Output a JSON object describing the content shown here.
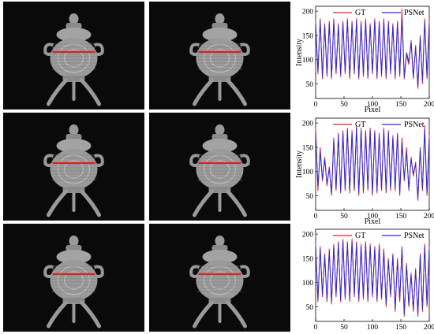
{
  "object_panels": [
    {
      "row": 1,
      "col": 1
    },
    {
      "row": 1,
      "col": 2
    },
    {
      "row": 2,
      "col": 1
    },
    {
      "row": 2,
      "col": 2
    },
    {
      "row": 3,
      "col": 1
    },
    {
      "row": 3,
      "col": 2
    }
  ],
  "colors": {
    "gt": "#e8202a",
    "psnet": "#2a2ae0",
    "panel_bg": "#0a0a0a",
    "object": "#9a9a9a",
    "scan_line": "#e02020"
  },
  "legend": {
    "gt": "GT",
    "psnet": "PSNet"
  },
  "chart_data": [
    {
      "type": "line",
      "xlabel": "Pixel",
      "ylabel": "Intensity",
      "xlim": [
        0,
        200
      ],
      "ylim": [
        20,
        210
      ],
      "xticks": [
        0,
        50,
        100,
        150,
        200
      ],
      "yticks": [
        50,
        100,
        150,
        200
      ],
      "legend_position": "top",
      "series": [
        {
          "name": "GT",
          "x": [
            0,
            4,
            8,
            12,
            16,
            20,
            24,
            28,
            32,
            36,
            40,
            44,
            48,
            52,
            56,
            60,
            64,
            68,
            72,
            76,
            80,
            84,
            88,
            92,
            96,
            100,
            104,
            108,
            112,
            116,
            120,
            124,
            128,
            132,
            136,
            140,
            144,
            148,
            152,
            156,
            160,
            164,
            168,
            172,
            176,
            180,
            184,
            188,
            192,
            196,
            200
          ],
          "y": [
            180,
            70,
            185,
            60,
            175,
            65,
            180,
            60,
            185,
            70,
            175,
            65,
            180,
            70,
            185,
            60,
            180,
            70,
            185,
            60,
            180,
            65,
            185,
            60,
            175,
            70,
            185,
            60,
            180,
            65,
            185,
            60,
            180,
            70,
            175,
            60,
            180,
            65,
            205,
            60,
            110,
            90,
            140,
            60,
            130,
            40,
            150,
            50,
            185,
            60,
            180
          ]
        },
        {
          "name": "PSNet",
          "x": [
            0,
            4,
            8,
            12,
            16,
            20,
            24,
            28,
            32,
            36,
            40,
            44,
            48,
            52,
            56,
            60,
            64,
            68,
            72,
            76,
            80,
            84,
            88,
            92,
            96,
            100,
            104,
            108,
            112,
            116,
            120,
            124,
            128,
            132,
            136,
            140,
            144,
            148,
            152,
            156,
            160,
            164,
            168,
            172,
            176,
            180,
            184,
            188,
            192,
            196,
            200
          ],
          "y": [
            175,
            75,
            180,
            65,
            170,
            70,
            175,
            65,
            180,
            75,
            170,
            70,
            175,
            75,
            180,
            65,
            175,
            75,
            180,
            65,
            175,
            70,
            180,
            65,
            170,
            75,
            180,
            65,
            175,
            70,
            180,
            65,
            175,
            75,
            170,
            65,
            175,
            70,
            185,
            65,
            115,
            95,
            135,
            65,
            125,
            45,
            145,
            55,
            180,
            65,
            175
          ]
        }
      ]
    },
    {
      "type": "line",
      "xlabel": "Pixel",
      "ylabel": "Intensity",
      "xlim": [
        0,
        200
      ],
      "ylim": [
        20,
        210
      ],
      "xticks": [
        0,
        50,
        100,
        150,
        200
      ],
      "yticks": [
        50,
        100,
        150,
        200
      ],
      "legend_position": "top",
      "series": [
        {
          "name": "GT",
          "x": [
            0,
            4,
            8,
            12,
            16,
            20,
            24,
            28,
            32,
            36,
            40,
            44,
            48,
            52,
            56,
            60,
            64,
            68,
            72,
            76,
            80,
            84,
            88,
            92,
            96,
            100,
            104,
            108,
            112,
            116,
            120,
            124,
            128,
            132,
            136,
            140,
            144,
            148,
            152,
            156,
            160,
            164,
            168,
            172,
            176,
            180,
            184,
            188,
            192,
            196,
            200
          ],
          "y": [
            190,
            60,
            150,
            80,
            130,
            70,
            110,
            50,
            170,
            60,
            180,
            55,
            185,
            60,
            190,
            55,
            185,
            60,
            195,
            50,
            190,
            55,
            185,
            60,
            190,
            50,
            185,
            55,
            180,
            60,
            190,
            55,
            185,
            60,
            175,
            60,
            180,
            50,
            170,
            80,
            150,
            60,
            130,
            90,
            120,
            40,
            150,
            60,
            195,
            50,
            175
          ]
        },
        {
          "name": "PSNet",
          "x": [
            0,
            4,
            8,
            12,
            16,
            20,
            24,
            28,
            32,
            36,
            40,
            44,
            48,
            52,
            56,
            60,
            64,
            68,
            72,
            76,
            80,
            84,
            88,
            92,
            96,
            100,
            104,
            108,
            112,
            116,
            120,
            124,
            128,
            132,
            136,
            140,
            144,
            148,
            152,
            156,
            160,
            164,
            168,
            172,
            176,
            180,
            184,
            188,
            192,
            196,
            200
          ],
          "y": [
            180,
            70,
            140,
            85,
            125,
            75,
            105,
            55,
            165,
            65,
            175,
            60,
            180,
            65,
            185,
            60,
            180,
            65,
            190,
            55,
            185,
            60,
            180,
            65,
            185,
            55,
            180,
            60,
            175,
            65,
            185,
            60,
            180,
            65,
            170,
            65,
            175,
            55,
            160,
            85,
            140,
            65,
            125,
            95,
            115,
            45,
            145,
            65,
            185,
            55,
            170
          ]
        }
      ]
    },
    {
      "type": "line",
      "xlabel": "",
      "ylabel": "",
      "xlim": [
        0,
        200
      ],
      "ylim": [
        20,
        210
      ],
      "xticks": [
        0,
        50,
        100,
        150,
        200
      ],
      "yticks": [
        50,
        100,
        150,
        200
      ],
      "legend_position": "top",
      "series": [
        {
          "name": "GT",
          "x": [
            0,
            4,
            8,
            12,
            16,
            20,
            24,
            28,
            32,
            36,
            40,
            44,
            48,
            52,
            56,
            60,
            64,
            68,
            72,
            76,
            80,
            84,
            88,
            92,
            96,
            100,
            104,
            108,
            112,
            116,
            120,
            124,
            128,
            132,
            136,
            140,
            144,
            148,
            152,
            156,
            160,
            164,
            168,
            172,
            176,
            180,
            184,
            188,
            192,
            196,
            200
          ],
          "y": [
            180,
            60,
            175,
            70,
            160,
            60,
            170,
            55,
            180,
            70,
            185,
            60,
            190,
            65,
            185,
            60,
            190,
            70,
            185,
            60,
            180,
            65,
            185,
            60,
            180,
            70,
            175,
            60,
            180,
            65,
            170,
            50,
            150,
            70,
            160,
            40,
            150,
            60,
            175,
            30,
            140,
            50,
            120,
            40,
            130,
            30,
            160,
            40,
            180,
            50,
            175
          ]
        },
        {
          "name": "PSNet",
          "x": [
            0,
            4,
            8,
            12,
            16,
            20,
            24,
            28,
            32,
            36,
            40,
            44,
            48,
            52,
            56,
            60,
            64,
            68,
            72,
            76,
            80,
            84,
            88,
            92,
            96,
            100,
            104,
            108,
            112,
            116,
            120,
            124,
            128,
            132,
            136,
            140,
            144,
            148,
            152,
            156,
            160,
            164,
            168,
            172,
            176,
            180,
            184,
            188,
            192,
            196,
            200
          ],
          "y": [
            175,
            65,
            170,
            75,
            155,
            65,
            165,
            60,
            175,
            75,
            180,
            65,
            185,
            70,
            180,
            65,
            185,
            75,
            180,
            65,
            175,
            70,
            180,
            65,
            175,
            75,
            170,
            65,
            175,
            70,
            165,
            55,
            145,
            75,
            155,
            45,
            145,
            65,
            170,
            35,
            135,
            55,
            115,
            45,
            125,
            35,
            155,
            45,
            175,
            55,
            170
          ]
        }
      ]
    }
  ]
}
